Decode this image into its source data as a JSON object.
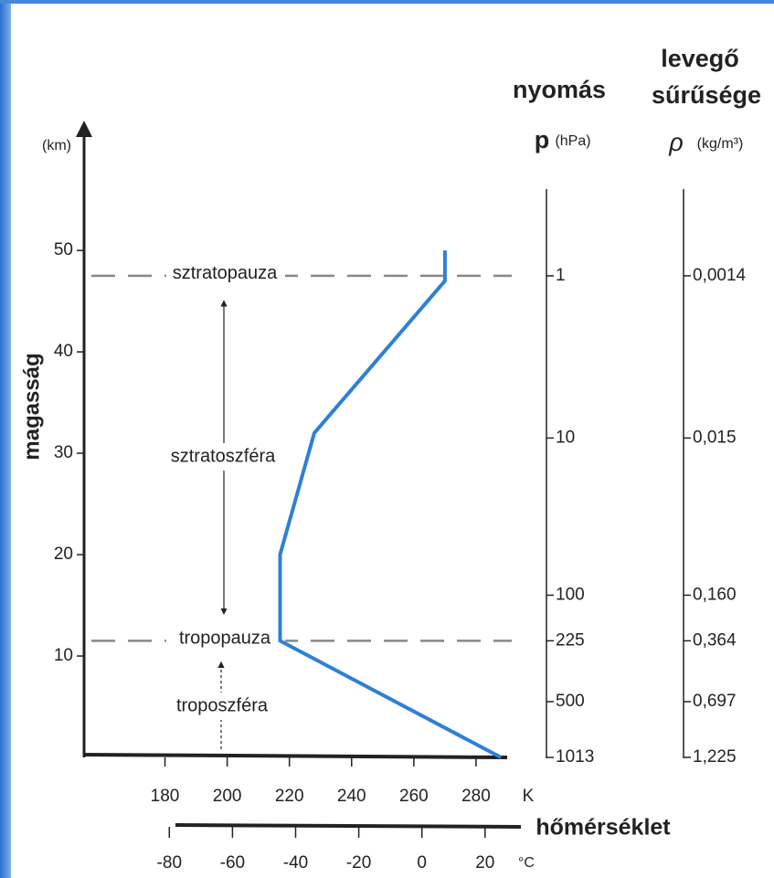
{
  "chart_data": {
    "type": "line",
    "y_unit": "(km)",
    "y_label": "magasság",
    "x_unit": "K",
    "x_label": "hőmérséklet",
    "x2_unit": "°C",
    "x": [
      288,
      217,
      217,
      228,
      270,
      270
    ],
    "series": [
      {
        "color": "#2f7fd6",
        "values": [
          0,
          11.5,
          20,
          32,
          47,
          50
        ]
      }
    ],
    "xlim": [
      154,
      290
    ],
    "xticks": [
      180,
      200,
      220,
      240,
      260,
      280
    ],
    "x2lim": [
      -107,
      27
    ],
    "x2ticks": [
      -80,
      -60,
      -40,
      -20,
      0,
      20
    ],
    "ylim": [
      0,
      62
    ],
    "yticks": [
      10,
      20,
      30,
      40,
      50
    ],
    "layers": [
      {
        "name": "sztratopauza",
        "altitude": 47.5
      },
      {
        "name": "tropopauza",
        "altitude": 11.5
      }
    ],
    "regions": [
      "sztratoszféra",
      "troposzféra"
    ],
    "pressure_header": "nyomás",
    "pressure_symbol": "p",
    "pressure_unit": "(hPa)",
    "density_header": [
      "levegő",
      "sűrűsége"
    ],
    "density_symbol": "ρ",
    "density_unit": "(kg/m³)",
    "levels": [
      {
        "altitude": 47.5,
        "pressure": 1,
        "density": {
          "value": 0.0014,
          "label": "0,0014"
        }
      },
      {
        "altitude": 31.5,
        "pressure": 10,
        "density": {
          "value": 0.015,
          "label": "0,015"
        }
      },
      {
        "altitude": 16,
        "pressure": 100,
        "density": {
          "value": 0.16,
          "label": "0,160"
        }
      },
      {
        "altitude": 11.5,
        "pressure": 225,
        "density": {
          "value": 0.364,
          "label": "0,364"
        }
      },
      {
        "altitude": 5.5,
        "pressure": 500,
        "density": {
          "value": 0.697,
          "label": "0,697"
        }
      },
      {
        "altitude": 0,
        "pressure": 1013,
        "density": {
          "value": 1.225,
          "label": "1,225"
        }
      }
    ]
  }
}
